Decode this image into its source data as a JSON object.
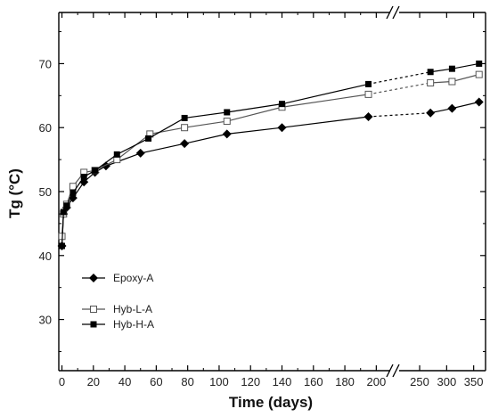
{
  "chart_data": {
    "type": "line",
    "xlabel": "Time (days)",
    "ylabel": "Tg (°C)",
    "ylim": [
      22,
      78
    ],
    "y_ticks": [
      30,
      40,
      50,
      60,
      70
    ],
    "x_ticks_left": [
      0,
      20,
      40,
      60,
      80,
      100,
      120,
      140,
      160,
      180,
      200
    ],
    "x_ticks_right": [
      250,
      300,
      350
    ],
    "x_axis_break": "after 200 days (//)",
    "xlim_left": [
      -2,
      210
    ],
    "xlim_right": [
      212,
      372
    ],
    "legend_position": "lower-left",
    "grid": false,
    "series": [
      {
        "name": "Epoxy-A",
        "marker": "filled-diamond",
        "x": [
          0,
          1,
          3,
          7,
          14,
          21,
          28,
          50,
          78,
          105,
          140,
          195,
          270,
          310,
          360
        ],
        "y": [
          41.5,
          46.5,
          47.5,
          49,
          51.5,
          53,
          54,
          56,
          57.5,
          59,
          60,
          61.7,
          62.3,
          63,
          64
        ]
      },
      {
        "name": "Hyb-L-A",
        "marker": "open-square",
        "x": [
          0,
          1,
          3,
          7,
          14,
          21,
          35,
          56,
          78,
          105,
          140,
          195,
          270,
          310,
          360
        ],
        "y": [
          43,
          46.5,
          48,
          50.8,
          53,
          53.3,
          55,
          59,
          60,
          61,
          63.2,
          65.2,
          67,
          67.2,
          68.3
        ]
      },
      {
        "name": "Hyb-H-A",
        "marker": "filled-square",
        "x": [
          0,
          1,
          3,
          7,
          14,
          21,
          35,
          55,
          78,
          105,
          140,
          195,
          270,
          310,
          360
        ],
        "y": [
          41.5,
          46.8,
          47.8,
          49.8,
          52.3,
          53.3,
          55.8,
          58.3,
          61.5,
          62.4,
          63.7,
          66.8,
          68.7,
          69.2,
          70
        ]
      }
    ]
  }
}
